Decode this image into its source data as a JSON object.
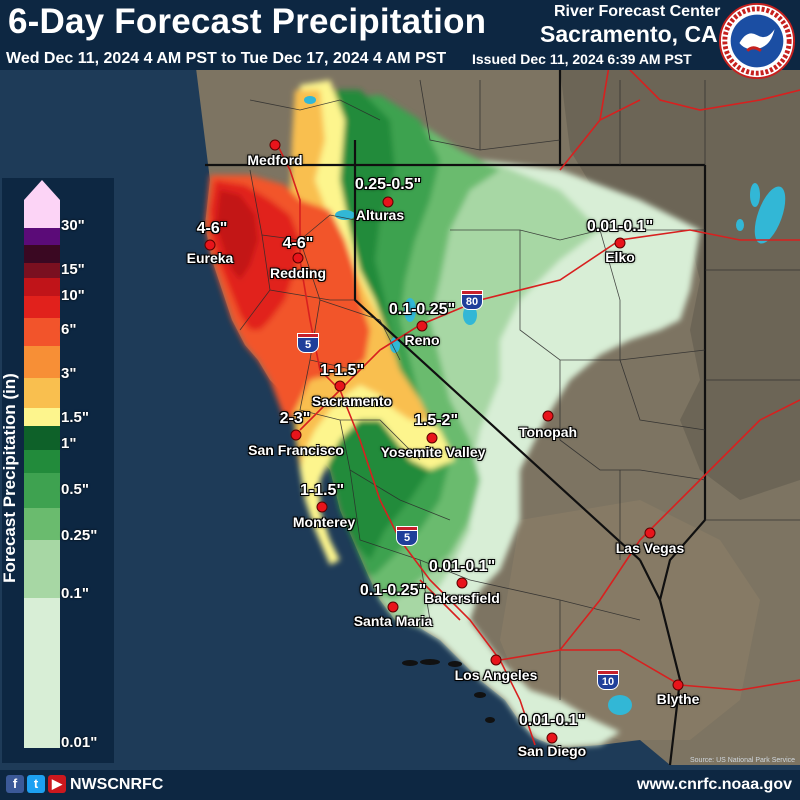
{
  "header": {
    "title": "6-Day Forecast Precipitation",
    "date_range": "Wed Dec 11, 2024 4 AM PST to Tue Dec 17, 2024 4 AM PST",
    "issued": "Issued Dec 11, 2024 6:39 AM PST",
    "agency_line1": "River Forecast Center",
    "agency_line2": "Sacramento, CA",
    "logo_text": "NATIONAL WEATHER SERVICE"
  },
  "legend": {
    "axis_label": "Forecast Precipitation (in)",
    "ticks": [
      "30\"",
      "15\"",
      "10\"",
      "6\"",
      "3\"",
      "1.5\"",
      "1\"",
      "0.5\"",
      "0.25\"",
      "0.1\"",
      "0.01\""
    ],
    "colors": [
      "#fcd4f6",
      "#5b0b78",
      "#3a0822",
      "#7a1020",
      "#c01419",
      "#e1211c",
      "#f2542b",
      "#f78f36",
      "#f9bf4f",
      "#fdf58d",
      "#0e6129",
      "#228b3b",
      "#3ea250",
      "#6abb6e",
      "#a7d7a4",
      "#d8eed6"
    ]
  },
  "cities": [
    {
      "name": "Medford"
    },
    {
      "name": "Eureka"
    },
    {
      "name": "Redding"
    },
    {
      "name": "Alturas"
    },
    {
      "name": "Elko"
    },
    {
      "name": "Reno"
    },
    {
      "name": "Sacramento"
    },
    {
      "name": "San Francisco"
    },
    {
      "name": "Tonopah"
    },
    {
      "name": "Yosemite Valley"
    },
    {
      "name": "Monterey"
    },
    {
      "name": "Las Vegas"
    },
    {
      "name": "Bakersfield"
    },
    {
      "name": "Santa Maria"
    },
    {
      "name": "Los Angeles"
    },
    {
      "name": "Blythe"
    },
    {
      "name": "San Diego"
    }
  ],
  "amounts": [
    "4-6\"",
    "4-6\"",
    "0.25-0.5\"",
    "0.01-0.1\"",
    "0.1-0.25\"",
    "1-1.5\"",
    "2-3\"",
    "1.5-2\"",
    "1-1.5\"",
    "0.01-0.1\"",
    "0.1-0.25\"",
    "0.01-0.1\""
  ],
  "highways": [
    "5",
    "80",
    "5",
    "10"
  ],
  "footer": {
    "handle": "NWSCNRFC",
    "url": "www.cnrfc.noaa.gov",
    "social_icons": [
      "facebook-icon",
      "twitter-icon",
      "youtube-icon"
    ]
  },
  "credit": "Source: US National Park Service"
}
